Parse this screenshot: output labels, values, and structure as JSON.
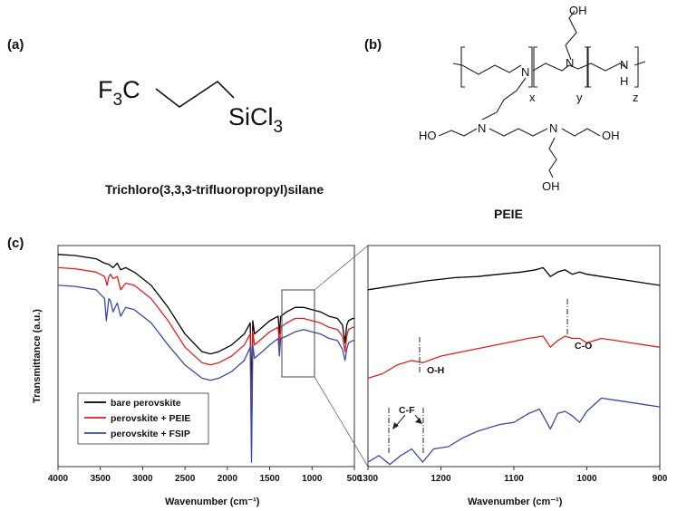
{
  "panels": {
    "a": {
      "label": "(a)",
      "name": "Trichloro(3,3,3-trifluoropropyl)silane",
      "formula_left": "F",
      "formula_left_sub": "3",
      "formula_left_tail": "C",
      "formula_right": "SiCl",
      "formula_right_sub": "3"
    },
    "b": {
      "label": "(b)",
      "name": "PEIE",
      "atoms": {
        "N": "N",
        "H": "H",
        "OH": "OH",
        "HO": "HO"
      },
      "subscripts": {
        "x": "x",
        "y": "y",
        "z": "z"
      }
    },
    "c": {
      "label": "(c)"
    }
  },
  "colors": {
    "bare": "#000000",
    "peie": "#e02020",
    "fsip": "#3a4aa8"
  },
  "chart_data": [
    {
      "type": "line",
      "title": "",
      "xlabel": "Wavenumber (cm⁻¹)",
      "ylabel": "Transmittance (a.u.)",
      "xlim": [
        4000,
        500
      ],
      "xticks": [
        "4000",
        "3500",
        "3000",
        "2500",
        "2000",
        "1500",
        "1000",
        "500"
      ],
      "legend": {
        "placement": "bottom-left",
        "entries": [
          "bare perovskite",
          "perovskite + PEIE",
          "perovskite + FSIP"
        ]
      },
      "series": [
        {
          "name": "bare perovskite",
          "color": "#000000",
          "x": [
            4000,
            3800,
            3550,
            3450,
            3400,
            3350,
            3300,
            3260,
            3200,
            3100,
            2900,
            2700,
            2500,
            2300,
            2200,
            2100,
            1950,
            1800,
            1730,
            1715,
            1700,
            1680,
            1620,
            1500,
            1400,
            1385,
            1370,
            1300,
            1200,
            1100,
            1000,
            900,
            800,
            700,
            640,
            610,
            590,
            570,
            520,
            500
          ],
          "y": [
            0.96,
            0.955,
            0.94,
            0.92,
            0.915,
            0.9,
            0.92,
            0.89,
            0.9,
            0.88,
            0.82,
            0.72,
            0.6,
            0.52,
            0.51,
            0.52,
            0.55,
            0.6,
            0.65,
            0.3,
            0.66,
            0.6,
            0.62,
            0.66,
            0.68,
            0.6,
            0.68,
            0.7,
            0.72,
            0.72,
            0.71,
            0.7,
            0.68,
            0.67,
            0.64,
            0.56,
            0.64,
            0.66,
            0.67,
            0.67
          ]
        },
        {
          "name": "perovskite + PEIE",
          "color": "#e02020",
          "x": [
            4000,
            3800,
            3550,
            3450,
            3420,
            3400,
            3380,
            3350,
            3300,
            3260,
            3200,
            3100,
            2900,
            2700,
            2500,
            2300,
            2200,
            2100,
            1950,
            1800,
            1730,
            1715,
            1700,
            1680,
            1620,
            1500,
            1400,
            1385,
            1370,
            1300,
            1200,
            1100,
            1000,
            900,
            800,
            700,
            640,
            610,
            590,
            570,
            520,
            500
          ],
          "y": [
            0.9,
            0.895,
            0.88,
            0.86,
            0.82,
            0.86,
            0.87,
            0.85,
            0.86,
            0.8,
            0.83,
            0.82,
            0.76,
            0.66,
            0.54,
            0.47,
            0.46,
            0.47,
            0.5,
            0.55,
            0.6,
            0.1,
            0.61,
            0.55,
            0.57,
            0.61,
            0.63,
            0.55,
            0.63,
            0.65,
            0.67,
            0.67,
            0.66,
            0.65,
            0.63,
            0.62,
            0.59,
            0.52,
            0.59,
            0.62,
            0.63,
            0.63
          ]
        },
        {
          "name": "perovskite + FSIP",
          "color": "#3a4aa8",
          "x": [
            4000,
            3800,
            3550,
            3450,
            3430,
            3400,
            3380,
            3350,
            3300,
            3260,
            3200,
            3100,
            2900,
            2700,
            2500,
            2300,
            2200,
            2100,
            1950,
            1800,
            1730,
            1715,
            1700,
            1680,
            1620,
            1500,
            1400,
            1385,
            1370,
            1300,
            1200,
            1100,
            1000,
            900,
            800,
            700,
            640,
            610,
            590,
            570,
            520,
            500
          ],
          "y": [
            0.82,
            0.815,
            0.8,
            0.76,
            0.66,
            0.76,
            0.75,
            0.7,
            0.74,
            0.68,
            0.72,
            0.71,
            0.65,
            0.55,
            0.46,
            0.4,
            0.39,
            0.4,
            0.43,
            0.48,
            0.54,
            0.02,
            0.55,
            0.49,
            0.51,
            0.55,
            0.58,
            0.5,
            0.58,
            0.59,
            0.61,
            0.62,
            0.61,
            0.6,
            0.58,
            0.57,
            0.53,
            0.48,
            0.53,
            0.56,
            0.57,
            0.57
          ]
        }
      ]
    },
    {
      "type": "line",
      "title": "",
      "xlabel": "Wavenumber (cm⁻¹)",
      "ylabel": "",
      "xlim": [
        1300,
        900
      ],
      "xticks": [
        "1300",
        "1200",
        "1100",
        "1000",
        "900"
      ],
      "annotations": [
        "O-H",
        "C-O",
        "C-F"
      ],
      "series": [
        {
          "name": "bare perovskite",
          "color": "#000000",
          "x": [
            1300,
            1260,
            1220,
            1180,
            1150,
            1120,
            1090,
            1070,
            1060,
            1050,
            1040,
            1030,
            1020,
            1010,
            1000,
            980,
            960,
            940,
            920,
            900
          ],
          "y": [
            0.8,
            0.82,
            0.84,
            0.855,
            0.86,
            0.87,
            0.88,
            0.89,
            0.9,
            0.86,
            0.88,
            0.89,
            0.87,
            0.88,
            0.87,
            0.86,
            0.85,
            0.84,
            0.83,
            0.82
          ]
        },
        {
          "name": "perovskite + PEIE",
          "color": "#e02020",
          "x": [
            1300,
            1280,
            1260,
            1240,
            1225,
            1200,
            1170,
            1140,
            1110,
            1080,
            1060,
            1050,
            1040,
            1030,
            1020,
            1010,
            1000,
            980,
            960,
            940,
            920,
            900
          ],
          "y": [
            0.4,
            0.42,
            0.46,
            0.48,
            0.47,
            0.5,
            0.52,
            0.54,
            0.56,
            0.58,
            0.59,
            0.54,
            0.57,
            0.59,
            0.58,
            0.58,
            0.56,
            0.58,
            0.57,
            0.56,
            0.55,
            0.54
          ]
        },
        {
          "name": "perovskite + FSIP",
          "color": "#3a4aa8",
          "x": [
            1300,
            1285,
            1270,
            1255,
            1240,
            1225,
            1210,
            1190,
            1170,
            1150,
            1120,
            1100,
            1080,
            1065,
            1050,
            1040,
            1030,
            1020,
            1010,
            1000,
            980,
            960,
            940,
            920,
            900
          ],
          "y": [
            0.02,
            0.05,
            0.01,
            0.05,
            0.08,
            0.02,
            0.08,
            0.09,
            0.13,
            0.16,
            0.19,
            0.2,
            0.24,
            0.26,
            0.17,
            0.24,
            0.25,
            0.23,
            0.2,
            0.25,
            0.31,
            0.3,
            0.29,
            0.28,
            0.27
          ]
        }
      ]
    }
  ]
}
